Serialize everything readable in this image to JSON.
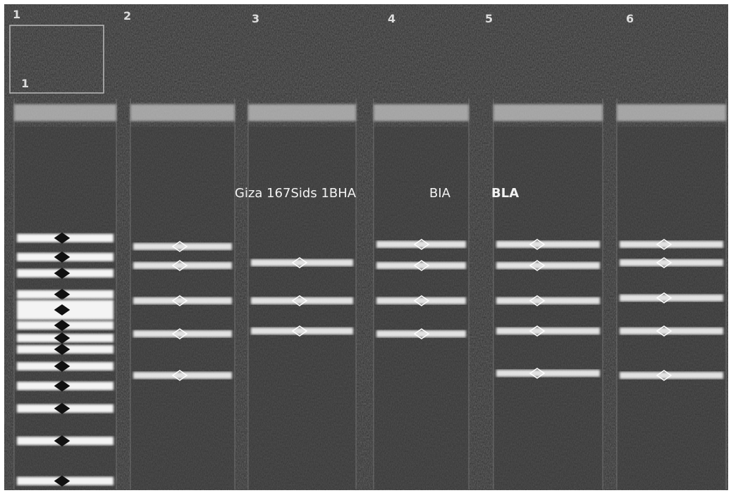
{
  "lane_labels": [
    "1",
    "2",
    "3",
    "4",
    "5",
    "6"
  ],
  "well_label": "1",
  "sample_labels": [
    "Giza 167Sids 1BHA",
    "BIA",
    "BLA"
  ]
}
